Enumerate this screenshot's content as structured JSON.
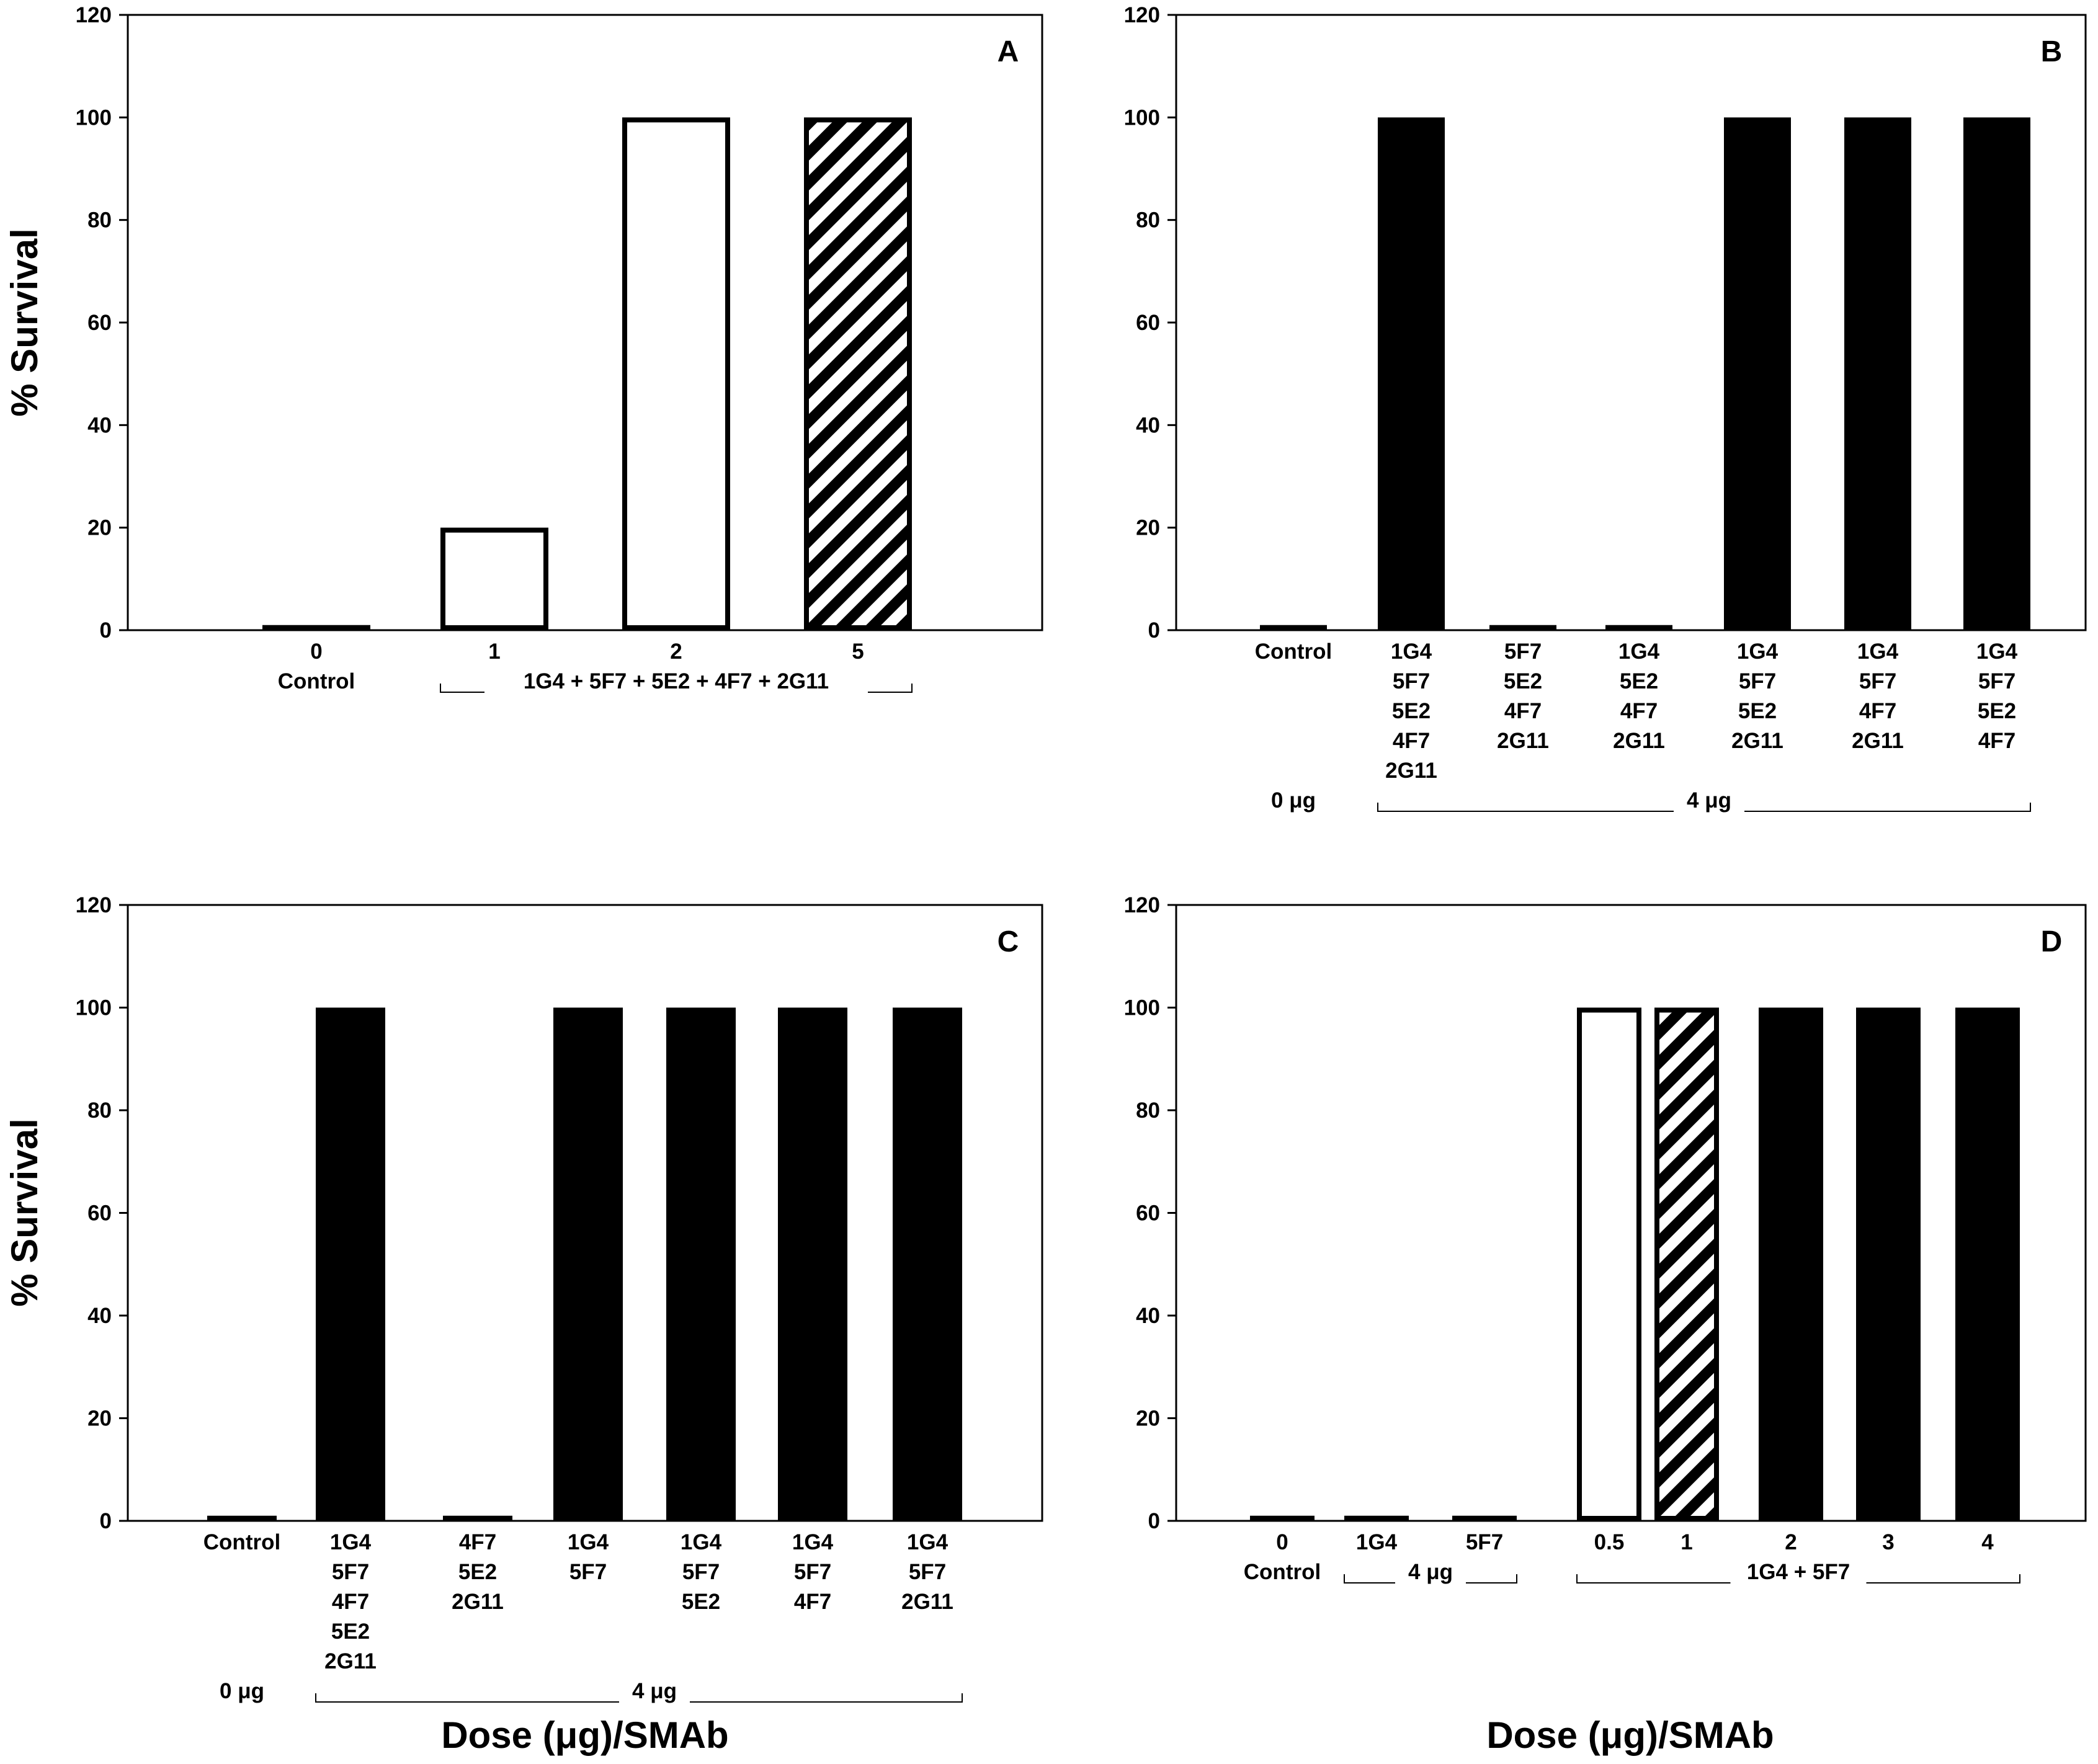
{
  "colors": {
    "solid": "#000000",
    "open": "#ffffff",
    "axis": "#000000"
  },
  "chart_data": [
    {
      "type": "bar",
      "panel": "A",
      "ylabel": "% Survival",
      "xlabel": "",
      "ylim": [
        0,
        120
      ],
      "yticks": [
        0,
        20,
        40,
        60,
        80,
        100,
        120
      ],
      "categories": [
        "0",
        "1",
        "2",
        "5"
      ],
      "category_lines": [
        [
          "0",
          "Control"
        ],
        [
          "1"
        ],
        [
          "2"
        ],
        [
          "5"
        ]
      ],
      "values": [
        1,
        20,
        100,
        100
      ],
      "fills": [
        "solid",
        "open",
        "open",
        "hatched"
      ],
      "group_labels": [
        {
          "text": "1G4 + 5F7 + 5E2 + 4F7 + 2G11",
          "from": 1,
          "to": 3,
          "row": 1
        }
      ]
    },
    {
      "type": "bar",
      "panel": "B",
      "ylabel": "",
      "xlabel": "",
      "ylim": [
        0,
        120
      ],
      "yticks": [
        0,
        20,
        40,
        60,
        80,
        100,
        120
      ],
      "categories": [
        "Control",
        "1G4 5F7 5E2 4F7 2G11",
        "5F7 5E2 4F7 2G11",
        "1G4 5E2 4F7 2G11",
        "1G4 5F7 5E2 2G11",
        "1G4 5F7 4F7 2G11",
        "1G4 5F7 5E2 4F7"
      ],
      "category_lines": [
        [
          "Control"
        ],
        [
          "1G4",
          "5F7",
          "5E2",
          "4F7",
          "2G11"
        ],
        [
          "5F7",
          "5E2",
          "4F7",
          "2G11"
        ],
        [
          "1G4",
          "5E2",
          "4F7",
          "2G11"
        ],
        [
          "1G4",
          "5F7",
          "5E2",
          "2G11"
        ],
        [
          "1G4",
          "5F7",
          "4F7",
          "2G11"
        ],
        [
          "1G4",
          "5F7",
          "5E2",
          "4F7"
        ]
      ],
      "values": [
        1,
        100,
        1,
        1,
        100,
        100,
        100
      ],
      "fills": [
        "solid",
        "solid",
        "solid",
        "solid",
        "solid",
        "solid",
        "solid"
      ],
      "group_labels": [
        {
          "text": "0 μg",
          "from": 0,
          "to": 0,
          "row": 5,
          "plain": true
        },
        {
          "text": "4 μg",
          "from": 1,
          "to": 6,
          "row": 5
        }
      ]
    },
    {
      "type": "bar",
      "panel": "C",
      "ylabel": "% Survival",
      "xlabel": "Dose (μg)/SMAb",
      "ylim": [
        0,
        120
      ],
      "yticks": [
        0,
        20,
        40,
        60,
        80,
        100,
        120
      ],
      "categories": [
        "Control",
        "1G4 5F7 4F7 5E2 2G11",
        "4F7 5E2 2G11",
        "1G4 5F7",
        "1G4 5F7 5E2",
        "1G4 5F7 4F7",
        "1G4 5F7 2G11"
      ],
      "category_lines": [
        [
          "Control"
        ],
        [
          "1G4",
          "5F7",
          "4F7",
          "5E2",
          "2G11"
        ],
        [
          "4F7",
          "5E2",
          "2G11"
        ],
        [
          "1G4",
          "5F7"
        ],
        [
          "1G4",
          "5F7",
          "5E2"
        ],
        [
          "1G4",
          "5F7",
          "4F7"
        ],
        [
          "1G4",
          "5F7",
          "2G11"
        ]
      ],
      "values": [
        1,
        100,
        1,
        100,
        100,
        100,
        100
      ],
      "fills": [
        "solid",
        "solid",
        "solid",
        "solid",
        "solid",
        "solid",
        "solid"
      ],
      "group_labels": [
        {
          "text": "0 μg",
          "from": 0,
          "to": 0,
          "row": 5,
          "plain": true
        },
        {
          "text": "4 μg",
          "from": 1,
          "to": 6,
          "row": 5
        }
      ]
    },
    {
      "type": "bar",
      "panel": "D",
      "ylabel": "",
      "xlabel": "Dose (μg)/SMAb",
      "ylim": [
        0,
        120
      ],
      "yticks": [
        0,
        20,
        40,
        60,
        80,
        100,
        120
      ],
      "categories": [
        "0",
        "1G4",
        "5F7",
        "0.5",
        "1",
        "2",
        "3",
        "4"
      ],
      "category_lines": [
        [
          "0",
          "Control"
        ],
        [
          "1G4"
        ],
        [
          "5F7"
        ],
        [
          "0.5"
        ],
        [
          "1"
        ],
        [
          "2"
        ],
        [
          "3"
        ],
        [
          "4"
        ]
      ],
      "values": [
        1,
        1,
        1,
        100,
        100,
        100,
        100,
        100
      ],
      "fills": [
        "solid",
        "solid",
        "solid",
        "open",
        "hatched",
        "solid",
        "solid",
        "solid"
      ],
      "group_labels": [
        {
          "text": "4 μg",
          "from": 1,
          "to": 2,
          "row": 1
        },
        {
          "text": "1G4 + 5F7",
          "from": 3,
          "to": 7,
          "row": 1
        }
      ]
    }
  ]
}
